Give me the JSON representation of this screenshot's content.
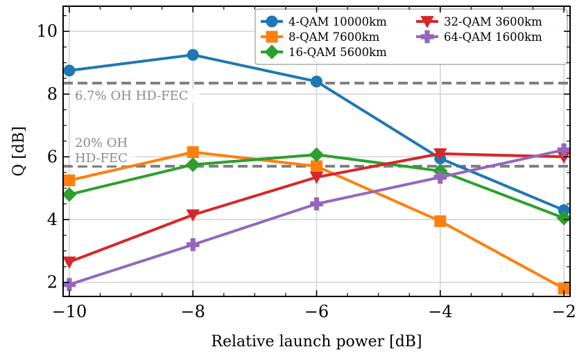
{
  "chart_data": {
    "type": "line",
    "title": "",
    "xlabel": "Relative launch power [dB]",
    "ylabel": "Q [dB]",
    "xlim": [
      -10.1,
      -1.9
    ],
    "ylim": [
      1.55,
      10.8
    ],
    "xticks": [
      -10,
      -8,
      -6,
      -4,
      -2
    ],
    "yticks": [
      2,
      4,
      6,
      8,
      10
    ],
    "xtick_labels": [
      "−10",
      "−8",
      "−6",
      "−4",
      "−2"
    ],
    "ytick_labels": [
      "2",
      "4",
      "6",
      "8",
      "10"
    ],
    "grid": true,
    "legend_position": "top-right",
    "x": [
      -10,
      -8,
      -6,
      -4,
      -2
    ],
    "series": [
      {
        "name": "4-QAM 10000km",
        "color": "#1f77b4",
        "marker": "circle",
        "values": [
          8.75,
          9.25,
          8.4,
          5.95,
          4.3
        ]
      },
      {
        "name": "8-QAM 7600km",
        "color": "#ff7f0e",
        "marker": "square",
        "values": [
          5.25,
          6.15,
          5.7,
          3.95,
          1.8
        ]
      },
      {
        "name": "16-QAM 5600km",
        "color": "#2ca02c",
        "marker": "diamond",
        "values": [
          4.8,
          5.75,
          6.07,
          5.55,
          4.05
        ]
      },
      {
        "name": "32-QAM 3600km",
        "color": "#d62728",
        "marker": "triangle-down",
        "values": [
          2.65,
          4.15,
          5.35,
          6.1,
          6.0
        ]
      },
      {
        "name": "64-QAM 1600km",
        "color": "#9467bd",
        "marker": "plus",
        "values": [
          1.93,
          3.2,
          4.5,
          5.35,
          6.22
        ]
      }
    ],
    "thresholds": [
      {
        "y": 8.35,
        "label_lines": [
          "6.7% OH HD-FEC"
        ],
        "color": "#808080"
      },
      {
        "y": 5.7,
        "label_lines": [
          "20% OH",
          "HD-FEC"
        ],
        "color": "#808080"
      }
    ]
  }
}
